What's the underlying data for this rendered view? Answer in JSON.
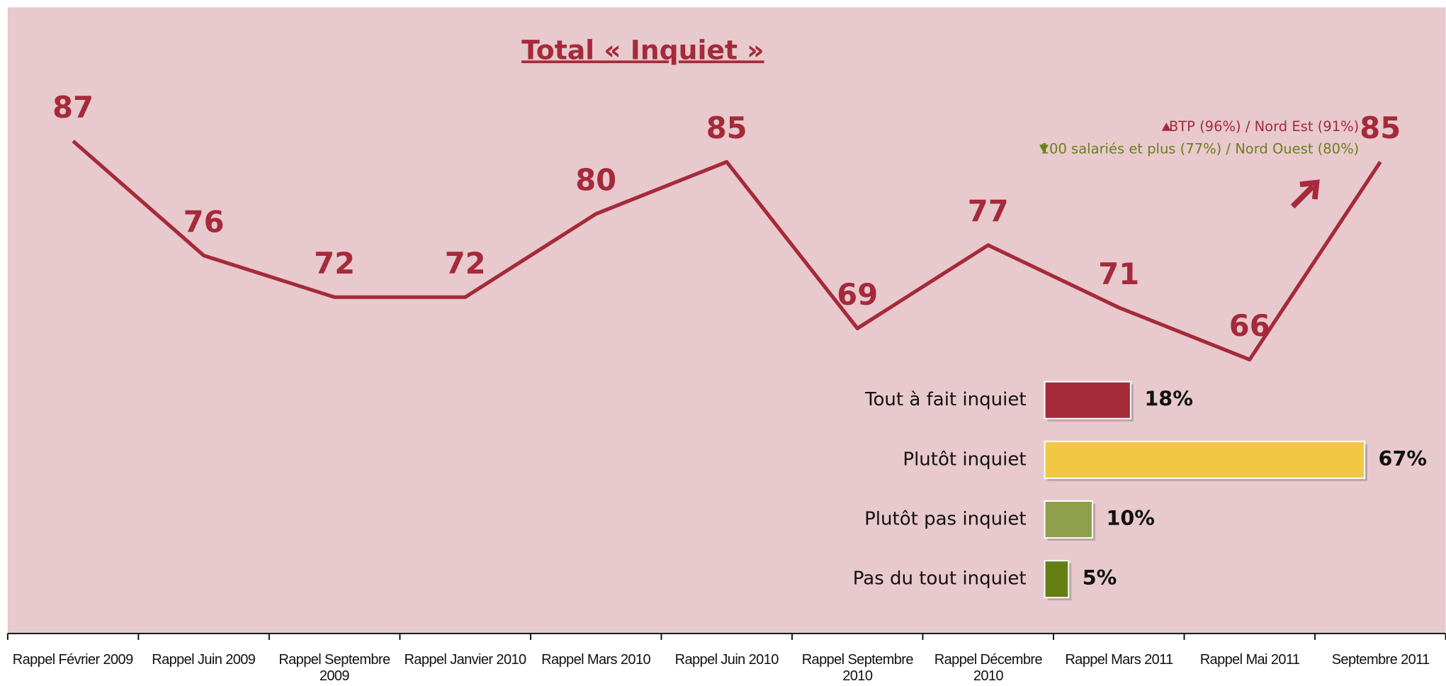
{
  "chart_data": [
    {
      "type": "line",
      "title": "Total « Inquiet »",
      "categories": [
        "Rappel Février 2009",
        "Rappel Juin 2009",
        "Rappel Septembre 2009",
        "Rappel Janvier 2010",
        "Rappel Mars 2010",
        "Rappel Juin 2010",
        "Rappel Septembre 2010",
        "Rappel Décembre 2010",
        "Rappel Mars 2011",
        "Rappel Mai 2011",
        "Septembre 2011"
      ],
      "values": [
        87,
        76,
        72,
        72,
        80,
        85,
        69,
        77,
        71,
        66,
        85
      ],
      "color": "#a52a3a",
      "annotations": [
        {
          "text": "BTP (96%) / Nord Est (91%)",
          "color": "#a52a3a"
        },
        {
          "text": "100 salariés et plus (77%) / Nord Ouest (80%)",
          "color": "#6b7f1a"
        }
      ]
    },
    {
      "type": "bar",
      "orientation": "horizontal",
      "categories": [
        "Tout à fait inquiet",
        "Plutôt inquiet",
        "Plutôt pas inquiet",
        "Pas du tout inquiet"
      ],
      "values": [
        18,
        67,
        10,
        5
      ],
      "value_labels": [
        "18%",
        "67%",
        "10%",
        "5%"
      ],
      "colors": [
        "#a52a3a",
        "#f2c744",
        "#8fa04c",
        "#667f14"
      ]
    }
  ]
}
